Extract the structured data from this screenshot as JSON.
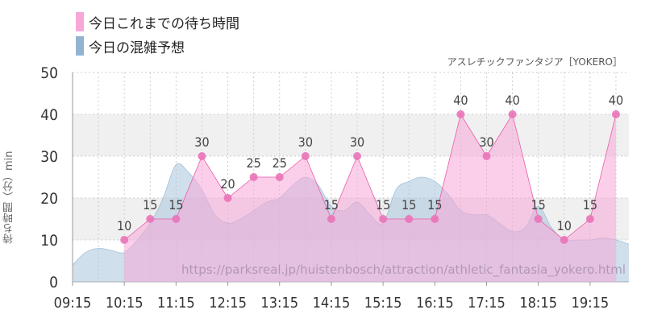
{
  "legend": {
    "today_label": "今日これまでの待ち時間",
    "forecast_label": "今日の混雑予想"
  },
  "attraction_label": "アスレチックファンタジア［YOKERO］",
  "watermark": "https://parksreal.jp/huistenbosch/attraction/athletic_fantasia_yokero.html",
  "colors": {
    "today_fill": "#f7a8d8",
    "today_line": "#ea5aa8",
    "today_marker": "#ea73b8",
    "forecast_fill": "#a8c4dc",
    "forecast_legend": "#92b4d2",
    "band": "#f0f0f0",
    "grid": "#cccccc"
  },
  "chart_data": {
    "type": "area",
    "ylabel": "待ち時間（分）min",
    "ylim": [
      0,
      50
    ],
    "yticks": [
      "0",
      "10",
      "20",
      "30",
      "40",
      "50"
    ],
    "xlim": [
      "09:15",
      "20:00"
    ],
    "xtick_labels": [
      "09:15",
      "10:15",
      "11:15",
      "12:15",
      "13:15",
      "14:15",
      "15:15",
      "16:15",
      "17:15",
      "18:15",
      "19:15"
    ],
    "series": [
      {
        "name": "今日これまでの待ち時間",
        "x": [
          "10:15",
          "10:45",
          "11:15",
          "11:45",
          "12:15",
          "12:45",
          "13:15",
          "13:45",
          "14:15",
          "14:45",
          "15:15",
          "15:45",
          "16:15",
          "16:45",
          "17:15",
          "17:45",
          "18:15",
          "18:45",
          "19:15",
          "19:45"
        ],
        "values": [
          10,
          15,
          15,
          30,
          20,
          25,
          25,
          30,
          15,
          30,
          15,
          15,
          15,
          40,
          30,
          40,
          15,
          10,
          15,
          40
        ],
        "labels": [
          "10",
          "15",
          "15",
          "30",
          "20",
          "25",
          "25",
          "30",
          "15",
          "30",
          "15",
          "15",
          "15",
          "40",
          "30",
          "40",
          "15",
          "10",
          "15",
          "40"
        ]
      },
      {
        "name": "今日の混雑予想",
        "x": [
          "09:15",
          "09:30",
          "09:45",
          "10:00",
          "10:15",
          "10:30",
          "10:45",
          "11:00",
          "11:15",
          "11:30",
          "11:45",
          "12:00",
          "12:15",
          "12:30",
          "12:45",
          "13:00",
          "13:15",
          "13:30",
          "13:45",
          "14:00",
          "14:15",
          "14:30",
          "14:45",
          "15:00",
          "15:15",
          "15:30",
          "15:45",
          "16:00",
          "16:15",
          "16:30",
          "16:45",
          "17:00",
          "17:15",
          "17:30",
          "17:45",
          "18:00",
          "18:15",
          "18:30",
          "18:45",
          "19:00",
          "19:15",
          "19:30",
          "19:45",
          "20:00"
        ],
        "values": [
          4,
          7,
          8,
          7.5,
          7,
          10,
          14,
          20,
          28,
          26,
          22,
          16,
          14,
          15,
          17,
          19,
          20,
          23,
          25,
          23,
          18,
          17,
          19,
          16,
          14,
          22,
          24,
          25,
          24,
          21,
          17,
          16,
          16,
          14,
          12,
          13,
          18,
          13,
          10,
          10,
          10,
          10.5,
          10,
          9
        ]
      }
    ]
  }
}
